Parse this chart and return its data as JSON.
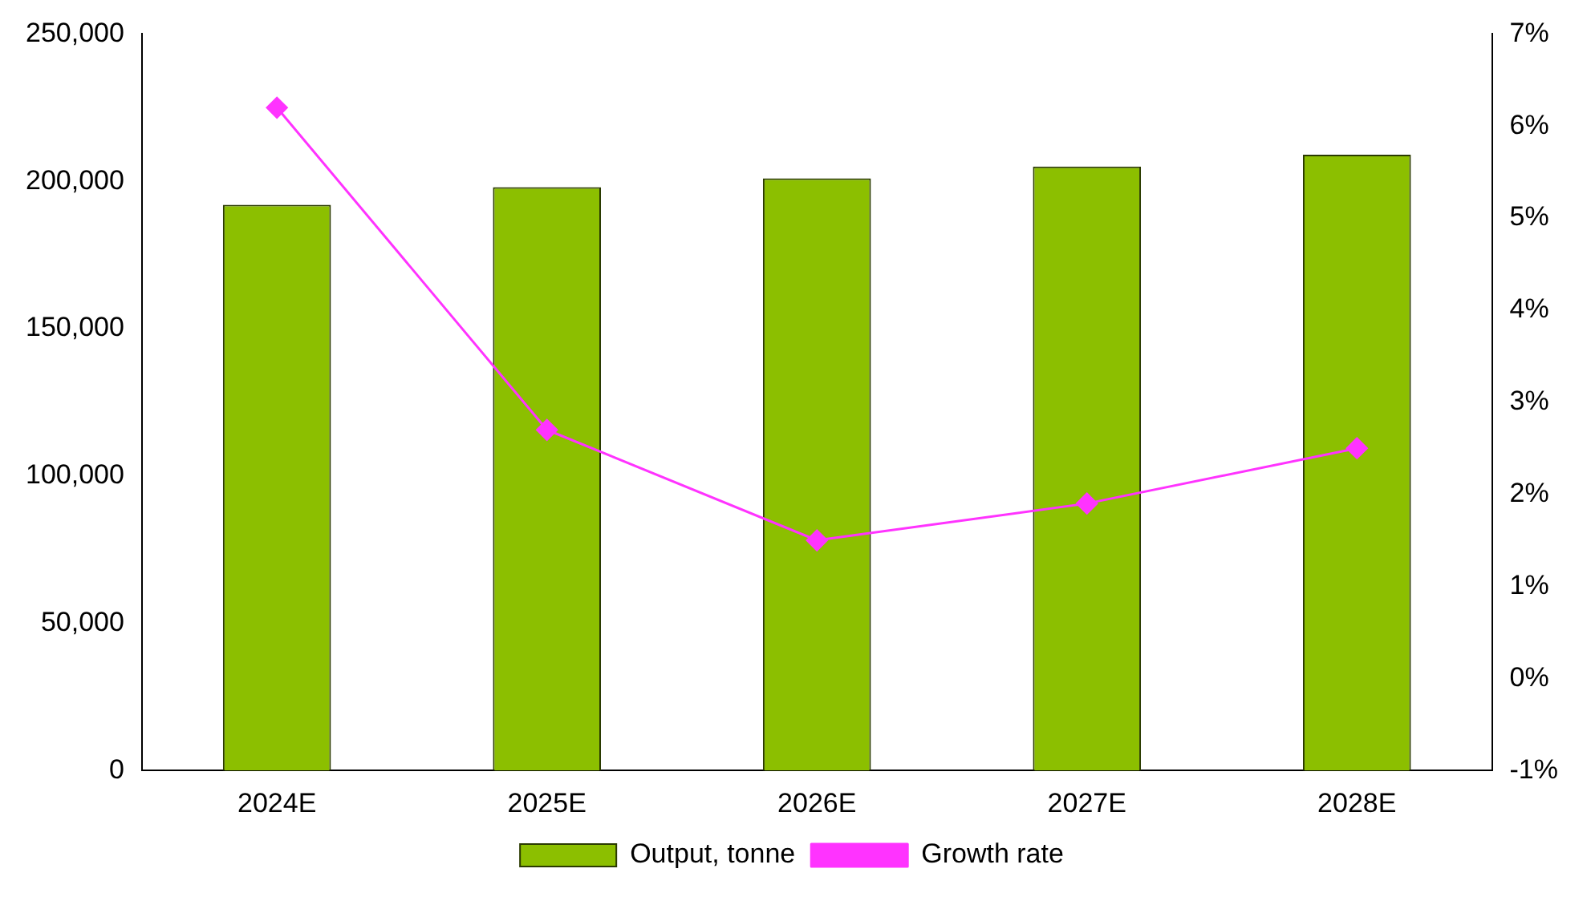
{
  "chart_data": {
    "type": "bar",
    "categories": [
      "2024E",
      "2025E",
      "2026E",
      "2027E",
      "2028E"
    ],
    "series": [
      {
        "name": "Output, tonne",
        "color": "#8cbf00",
        "values": [
          192000,
          198000,
          201000,
          205000,
          209000
        ]
      },
      {
        "name": "Growth rate",
        "type": "line",
        "axis": "y2",
        "color": "#ff33ff",
        "marker": "diamond",
        "values": [
          6.2,
          2.7,
          1.5,
          1.9,
          2.5
        ]
      }
    ],
    "ylim": [
      0,
      250000
    ],
    "yticks": [
      {
        "value": 0,
        "label": "0"
      },
      {
        "value": 50000,
        "label": "50,000"
      },
      {
        "value": 100000,
        "label": "100,000"
      },
      {
        "value": 150000,
        "label": "150,000"
      },
      {
        "value": 200000,
        "label": "200,000"
      },
      {
        "value": 250000,
        "label": "250,000"
      }
    ],
    "y2lim": [
      -1,
      7
    ],
    "y2ticks": [
      {
        "value": -1,
        "label": "-1%"
      },
      {
        "value": 0,
        "label": "0%"
      },
      {
        "value": 1,
        "label": "1%"
      },
      {
        "value": 2,
        "label": "2%"
      },
      {
        "value": 3,
        "label": "3%"
      },
      {
        "value": 4,
        "label": "4%"
      },
      {
        "value": 5,
        "label": "5%"
      },
      {
        "value": 6,
        "label": "6%"
      },
      {
        "value": 7,
        "label": "7%"
      }
    ],
    "grid": false,
    "legend": "bottom"
  }
}
